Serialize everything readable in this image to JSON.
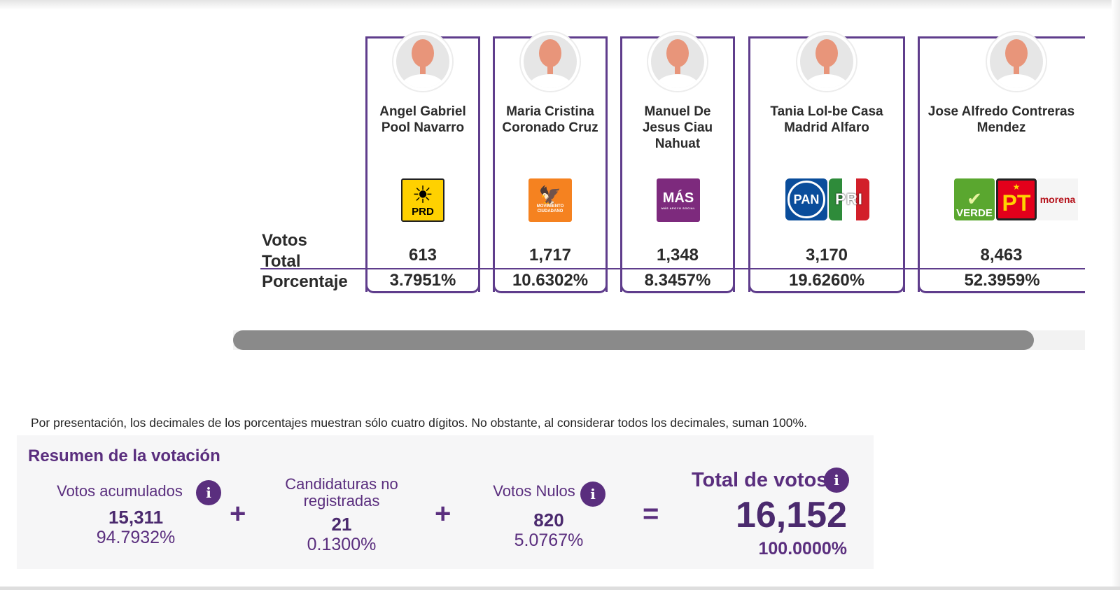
{
  "candidates": [
    {
      "name_line1": "Angel Gabriel",
      "name_line2": "Pool Navarro",
      "name_line3": "",
      "party": "PRD",
      "votes": "613",
      "percent": "3.7951%"
    },
    {
      "name_line1": "Maria Cristina",
      "name_line2": "Coronado Cruz",
      "name_line3": "",
      "party": "MOVIMIENTO CIUDADANO",
      "votes": "1,717",
      "percent": "10.6302%"
    },
    {
      "name_line1": "Manuel De",
      "name_line2": "Jesus Ciau",
      "name_line3": "Nahuat",
      "party": "MÁS",
      "votes": "1,348",
      "percent": "8.3457%"
    },
    {
      "name_line1": "Tania Lol-be Casa",
      "name_line2": "Madrid Alfaro",
      "name_line3": "",
      "parties": [
        "PAN",
        "PRI"
      ],
      "votes": "3,170",
      "percent": "19.6260%"
    },
    {
      "name_line1": "Jose Alfredo Contreras",
      "name_line2": "Mendez",
      "name_line3": "",
      "parties": [
        "VERDE",
        "PT",
        "morena"
      ],
      "votes": "8,463",
      "percent": "52.3959%"
    }
  ],
  "labels": {
    "votos_line1": "Votos",
    "votos_line2": "Total",
    "porcentaje": "Porcentaje"
  },
  "logos": {
    "prd_text": "PRD",
    "mc_text": "MOVIMIENTO CIUDADANO",
    "mas_text": "MÁS",
    "mas_sub": "MÁS APOYO SOCIAL",
    "pan_text": "PAN",
    "pri_text": "PRI",
    "verde_text": "VERDE",
    "pt_text": "PT",
    "morena_text": "morena"
  },
  "scroll": {
    "thumb_fraction": 0.94
  },
  "note": "Por presentación, los decimales de los porcentajes muestran sólo cuatro dígitos. No obstante, al considerar todos los decimales, suman 100%.",
  "summary": {
    "title": "Resumen de la votación",
    "acumulados_label": "Votos acumulados",
    "acumulados_num": "15,311",
    "acumulados_pct": "94.7932%",
    "no_reg_label_1": "Candidaturas no",
    "no_reg_label_2": "registradas",
    "no_reg_num": "21",
    "no_reg_pct": "0.1300%",
    "nulos_label": "Votos Nulos",
    "nulos_num": "820",
    "nulos_pct": "5.0767%",
    "total_label": "Total de votos",
    "total_num": "16,152",
    "total_pct": "100.0000%",
    "plus": "+",
    "equals": "="
  },
  "colors": {
    "accent": "#5f3d8c",
    "summary_text": "#5a2e7e"
  }
}
